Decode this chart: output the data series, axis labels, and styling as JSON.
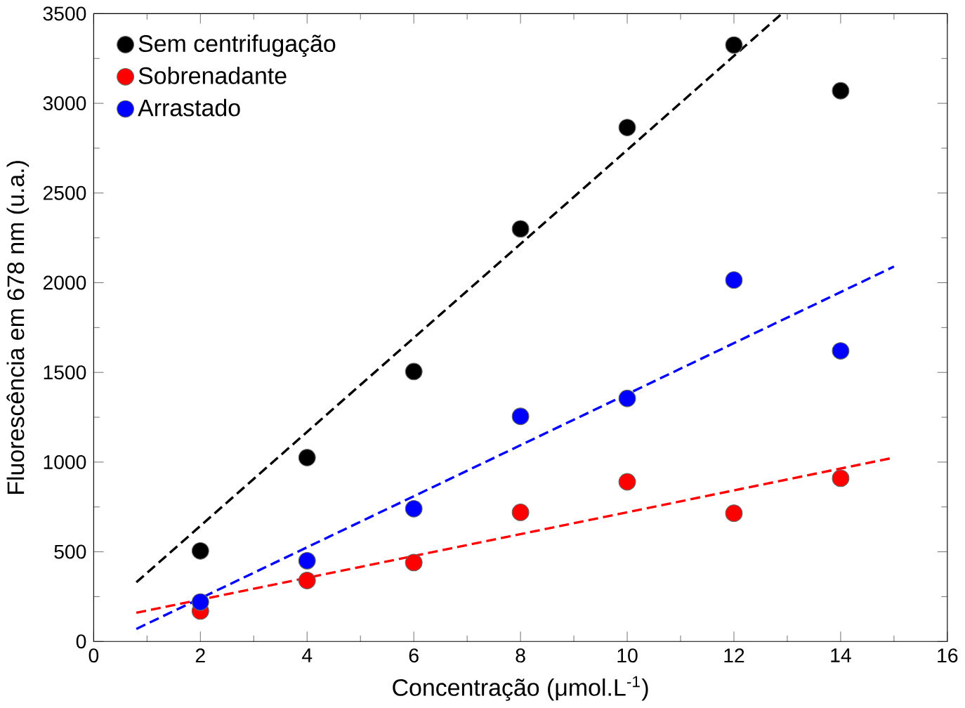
{
  "chart_data": {
    "type": "scatter",
    "xlabel": "Concentração (μmol.L$^{-1}$)",
    "ylabel": "Fluorescência em 678 nm (u.a.)",
    "xlim": [
      0,
      16
    ],
    "ylim": [
      0,
      3500
    ],
    "xticks": [
      0,
      2,
      4,
      6,
      8,
      10,
      12,
      14,
      16
    ],
    "yticks": [
      0,
      500,
      1000,
      1500,
      2000,
      2500,
      3000,
      3500
    ],
    "legend": "top left",
    "x": [
      2,
      4,
      6,
      8,
      10,
      12,
      14
    ],
    "series": [
      {
        "name": "Sem centrifugação",
        "marker": "circle",
        "color": "#000000",
        "values": [
          505,
          1025,
          1505,
          2300,
          2865,
          3325,
          3070
        ]
      },
      {
        "name": "Sobrenadante",
        "marker": "circle",
        "color": "#ff0000",
        "values": [
          170,
          340,
          440,
          720,
          890,
          715,
          910
        ]
      },
      {
        "name": "Arrastado",
        "marker": "circle",
        "color": "#0000ff",
        "values": [
          220,
          450,
          740,
          1255,
          1355,
          2015,
          1620
        ]
      },
      {
        "type": "line",
        "line_style": "dashed",
        "color": "#000000",
        "x": [
          0.8,
          12.9
        ],
        "values": [
          330,
          3500
        ]
      },
      {
        "type": "line",
        "line_style": "dashed",
        "color": "#ff0000",
        "x": [
          0.8,
          15
        ],
        "values": [
          160,
          1025
        ]
      },
      {
        "type": "line",
        "line_style": "dashed",
        "color": "#0000ff",
        "x": [
          0.8,
          15
        ],
        "values": [
          70,
          2090
        ]
      }
    ]
  }
}
